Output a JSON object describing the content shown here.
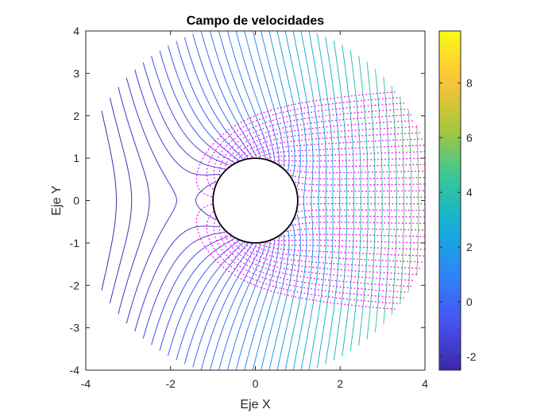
{
  "chart_data": {
    "type": "contour",
    "title": "Campo de velocidades",
    "xlabel": "Eje X",
    "ylabel": "Eje Y",
    "xlim": [
      -4,
      4
    ],
    "ylim": [
      -4,
      4
    ],
    "xticks": [
      -4,
      -2,
      0,
      2,
      4
    ],
    "xtick_labels": [
      "-4",
      "-2",
      "0",
      "2",
      "4"
    ],
    "yticks": [
      -4,
      -3,
      -2,
      -1,
      0,
      1,
      2,
      3,
      4
    ],
    "ytick_labels": [
      "-4",
      "-3",
      "-2",
      "-1",
      "0",
      "1",
      "2",
      "3",
      "4"
    ],
    "domain_radius": 4.2,
    "cylinder_radius": 1,
    "contour_field": "potential phi = U*(r + a^2/r)*cos(theta) + m*ln(r)",
    "contour_range": [
      -2.5,
      9.9
    ],
    "contour_levels": 60,
    "streamlines": {
      "style": "dotted",
      "color": "#ff00ff",
      "count": 36,
      "start_angles_deg_step": 10
    },
    "colorbar": {
      "colormap": "parula",
      "min": -2.5,
      "max": 9.9,
      "ticks": [
        -2,
        0,
        2,
        4,
        6,
        8
      ],
      "tick_labels": [
        "-2",
        "0",
        "2",
        "4",
        "6",
        "8"
      ]
    },
    "grid": false,
    "legend": "none"
  }
}
